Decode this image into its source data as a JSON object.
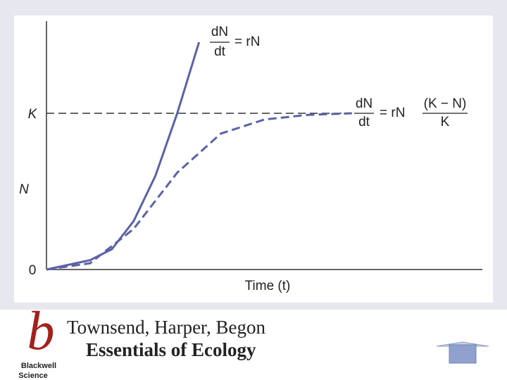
{
  "chart_data": {
    "type": "line",
    "xlabel": "Time (t)",
    "ylabel": "N",
    "xlim": [
      0,
      10
    ],
    "ylim": [
      0,
      1.59
    ],
    "yticks": [
      0,
      {
        "value": 1,
        "label": "K"
      }
    ],
    "series": [
      {
        "color": "#5a62a8",
        "line_style": "solid",
        "x": [
          0,
          1,
          1.5,
          2,
          2.5,
          3,
          3.5
        ],
        "values": [
          0,
          0.06,
          0.13,
          0.31,
          0.6,
          1.0,
          1.455
        ]
      },
      {
        "color": "#5a62a8",
        "line_style": "dashed",
        "x": [
          0,
          1,
          2,
          3,
          4,
          5,
          6,
          7
        ],
        "values": [
          0,
          0.04,
          0.26,
          0.62,
          0.87,
          0.96,
          0.99,
          1.0
        ]
      }
    ],
    "annotations": [
      {
        "numerator": "dN",
        "denominator": "dt",
        "rhs": "= rN"
      },
      {
        "numerator": "dN",
        "denominator": "dt",
        "rhs": "= rN",
        "factor_numerator": "(K − N)",
        "factor_denominator": "K"
      }
    ]
  },
  "footer": {
    "logo": "b",
    "publisher_1": "Blackwell",
    "publisher_2": "Science",
    "authors": "Townsend, Harper, Begon",
    "book": "Essentials of Ecology"
  }
}
